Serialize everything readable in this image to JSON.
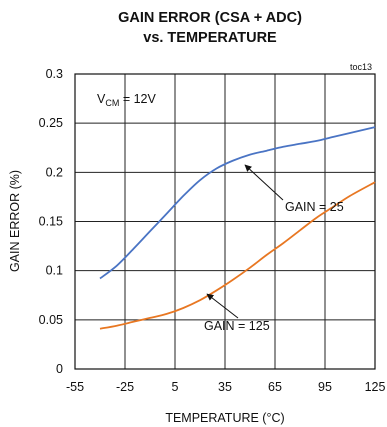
{
  "chart_data": {
    "type": "line",
    "title_line1": "GAIN ERROR (CSA + ADC)",
    "title_line2": "vs. TEMPERATURE",
    "corner_code": "toc13",
    "xlabel": "TEMPERATURE (°C)",
    "ylabel": "GAIN ERROR (%)",
    "xlim": [
      -55,
      125
    ],
    "ylim": [
      0,
      0.3
    ],
    "x_ticks": [
      -55,
      -25,
      5,
      35,
      65,
      95,
      125
    ],
    "x_tick_labels": [
      "-55",
      "-25",
      "5",
      "35",
      "65",
      "95",
      "125"
    ],
    "y_ticks": [
      0,
      0.05,
      0.1,
      0.15,
      0.2,
      0.25,
      0.3
    ],
    "y_tick_labels": [
      "0",
      "0.05",
      "0.1",
      "0.15",
      "0.2",
      "0.25",
      "0.3"
    ],
    "grid": true,
    "condition": {
      "prefix": "V",
      "subscript": "CM",
      "suffix": " = 12V"
    },
    "series": [
      {
        "name": "GAIN = 25",
        "color": "#4a74c4",
        "x": [
          -40,
          -30,
          -20,
          -10,
          0,
          10,
          20,
          30,
          40,
          50,
          60,
          70,
          80,
          90,
          100,
          110,
          125
        ],
        "y": [
          0.092,
          0.105,
          0.122,
          0.14,
          0.158,
          0.176,
          0.192,
          0.204,
          0.212,
          0.218,
          0.222,
          0.226,
          0.229,
          0.232,
          0.236,
          0.24,
          0.246
        ]
      },
      {
        "name": "GAIN = 125",
        "color": "#e87722",
        "x": [
          -40,
          -30,
          -20,
          -10,
          0,
          10,
          20,
          30,
          40,
          50,
          60,
          70,
          80,
          90,
          100,
          110,
          125
        ],
        "y": [
          0.041,
          0.044,
          0.048,
          0.052,
          0.056,
          0.062,
          0.07,
          0.08,
          0.091,
          0.103,
          0.116,
          0.128,
          0.141,
          0.154,
          0.165,
          0.176,
          0.19
        ]
      }
    ],
    "annotations": [
      {
        "text": "GAIN = 25",
        "points_to_series": 0
      },
      {
        "text": "GAIN = 125",
        "points_to_series": 1
      }
    ]
  }
}
